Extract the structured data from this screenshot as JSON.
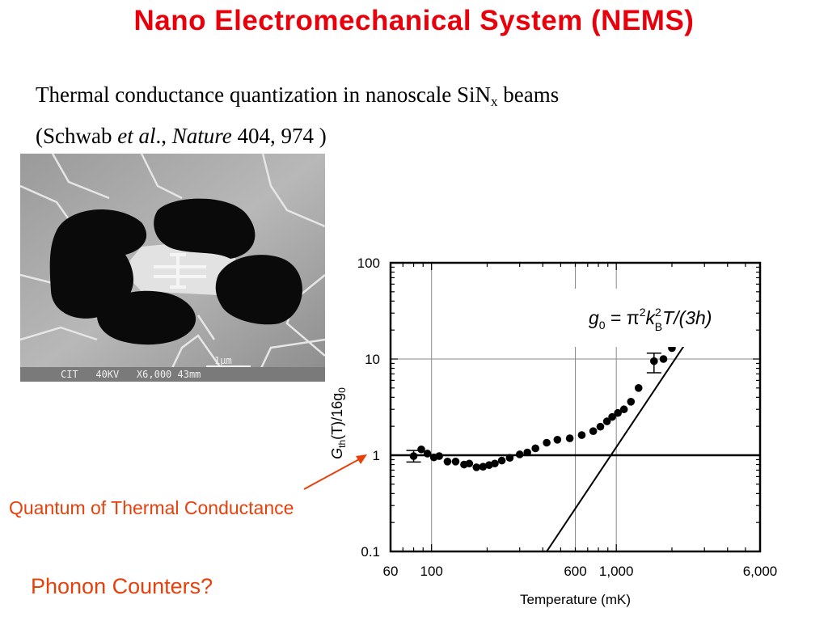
{
  "slide": {
    "title": "Nano Electromechanical System (NEMS)",
    "subtitle_line1_main": "Thermal conductance quantization in nanoscale SiN",
    "subtitle_line1_sub": "x",
    "subtitle_line1_end": " beams",
    "subtitle_line2_open": "(Schwab ",
    "subtitle_line2_etal": "et al",
    "subtitle_line2_sep": "., ",
    "subtitle_line2_journal": "Nature",
    "subtitle_line2_ref": " 404, 974 )",
    "annotation_quantum": "Quantum of Thermal Conductance",
    "annotation_phonon": "Phonon Counters?",
    "accent_color": "#e8000b",
    "annotation_color": "#e8400b"
  },
  "micrograph": {
    "caption": "CIT   40KV   X6,000 43mm",
    "scale_label": "1μm"
  },
  "chart_data": {
    "type": "scatter",
    "xlabel": "Temperature (mK)",
    "ylabel_parts": {
      "main": "G",
      "sub": "th",
      "rest": "(T)/16g",
      "sub2": "0"
    },
    "xscale": "log",
    "yscale": "log",
    "xlim": [
      60,
      6000
    ],
    "ylim": [
      0.1,
      100
    ],
    "xticks": [
      {
        "value": 60,
        "label": "60"
      },
      {
        "value": 100,
        "label": "100"
      },
      {
        "value": 600,
        "label": "600"
      },
      {
        "value": 1000,
        "label": "1,000"
      },
      {
        "value": 6000,
        "label": "6,000"
      }
    ],
    "yticks": [
      {
        "value": 100,
        "label": "100"
      },
      {
        "value": 10,
        "label": "10"
      },
      {
        "value": 1,
        "label": "1"
      },
      {
        "value": 0.1,
        "label": "0.1"
      }
    ],
    "vertical_gridlines": [
      100,
      600,
      1000
    ],
    "horizontal_gridlines": [
      10
    ],
    "reference_line": {
      "y": 1
    },
    "formula": "g₀ = π²k²ʙT/(3h)",
    "formula_parts": {
      "g": "g",
      "g_sub": "0",
      "eq": " = π",
      "pi_sup": "2",
      "k": "k",
      "k_sup": "2",
      "k_sub": "B",
      "rest": "T/(3h)"
    },
    "series": [
      {
        "points": [
          [
            80,
            0.98
          ],
          [
            88,
            1.15
          ],
          [
            95,
            1.04
          ],
          [
            103,
            0.95
          ],
          [
            110,
            0.98
          ],
          [
            122,
            0.86
          ],
          [
            135,
            0.86
          ],
          [
            150,
            0.8
          ],
          [
            160,
            0.82
          ],
          [
            175,
            0.75
          ],
          [
            190,
            0.76
          ],
          [
            205,
            0.79
          ],
          [
            220,
            0.82
          ],
          [
            240,
            0.88
          ],
          [
            265,
            0.94
          ],
          [
            300,
            1.02
          ],
          [
            330,
            1.07
          ],
          [
            365,
            1.18
          ],
          [
            420,
            1.35
          ],
          [
            480,
            1.45
          ],
          [
            560,
            1.5
          ],
          [
            650,
            1.62
          ],
          [
            750,
            1.78
          ],
          [
            820,
            1.98
          ],
          [
            890,
            2.25
          ],
          [
            950,
            2.5
          ],
          [
            1020,
            2.75
          ],
          [
            1100,
            3.0
          ],
          [
            1200,
            3.6
          ],
          [
            1320,
            5.0
          ],
          [
            1600,
            9.5
          ],
          [
            1800,
            10.0
          ],
          [
            2000,
            13.0
          ]
        ],
        "error_bars": [
          {
            "x": 80,
            "low": 0.85,
            "high": 1.12
          },
          {
            "x": 1600,
            "low": 7.2,
            "high": 11.5
          }
        ]
      }
    ],
    "fit_line": {
      "points": [
        [
          420,
          0.1
        ],
        [
          3400,
          41
        ]
      ]
    }
  }
}
